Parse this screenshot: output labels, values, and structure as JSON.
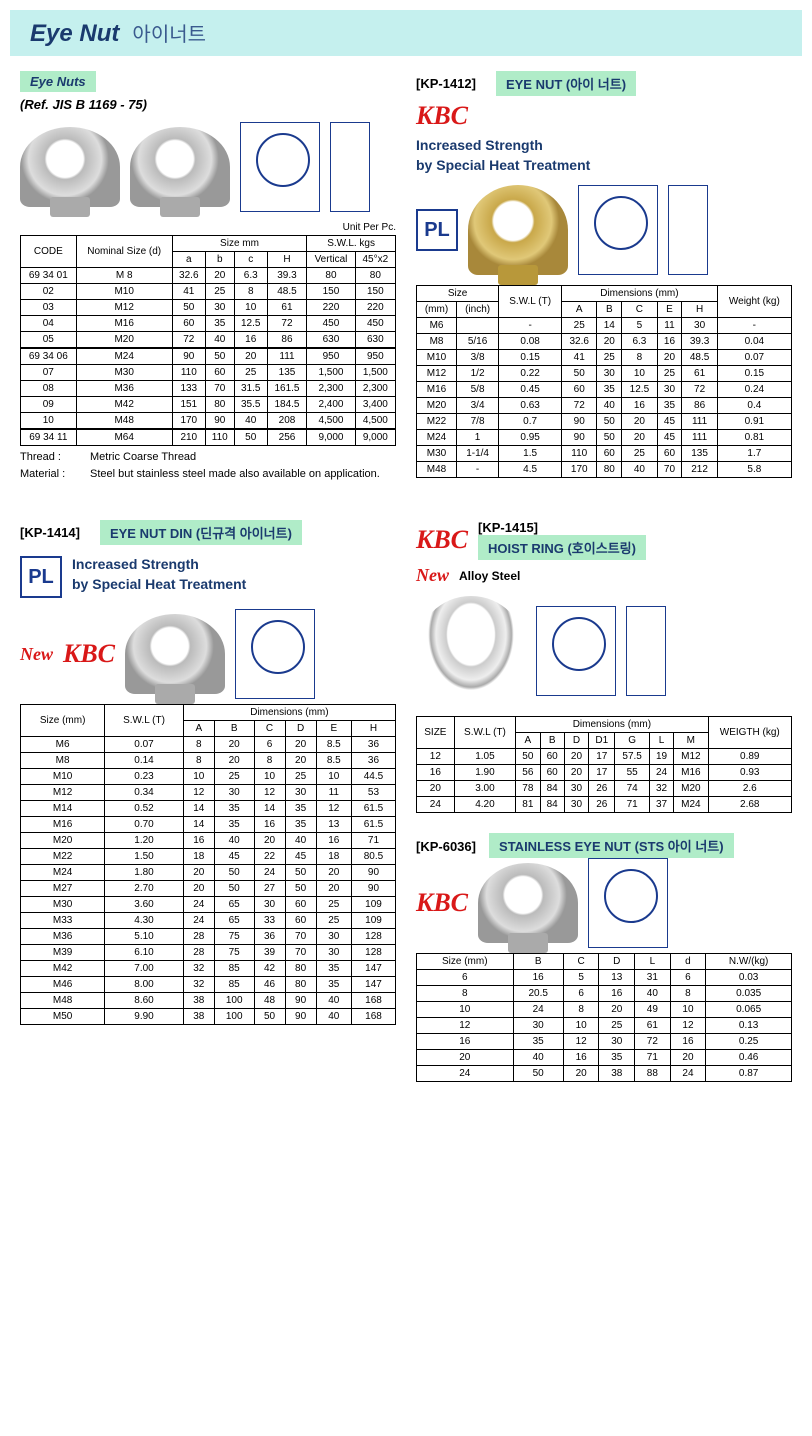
{
  "header": {
    "title_en": "Eye Nut",
    "title_kr": "아이너트"
  },
  "sec1": {
    "label": "Eye Nuts",
    "ref": "(Ref. JIS B 1169 - 75)",
    "unit": "Unit Per Pc.",
    "columns": [
      "CODE",
      "Nominal Size (d)",
      "a",
      "b",
      "c",
      "H",
      "Vertical",
      "45°x2"
    ],
    "group_size": "Size mm",
    "group_swl": "S.W.L. kgs",
    "rows1": [
      [
        "69 34 01",
        "M 8",
        "32.6",
        "20",
        "6.3",
        "39.3",
        "80",
        "80"
      ],
      [
        "02",
        "M10",
        "41",
        "25",
        "8",
        "48.5",
        "150",
        "150"
      ],
      [
        "03",
        "M12",
        "50",
        "30",
        "10",
        "61",
        "220",
        "220"
      ],
      [
        "04",
        "M16",
        "60",
        "35",
        "12.5",
        "72",
        "450",
        "450"
      ],
      [
        "05",
        "M20",
        "72",
        "40",
        "16",
        "86",
        "630",
        "630"
      ]
    ],
    "rows2": [
      [
        "69 34 06",
        "M24",
        "90",
        "50",
        "20",
        "111",
        "950",
        "950"
      ],
      [
        "07",
        "M30",
        "110",
        "60",
        "25",
        "135",
        "1,500",
        "1,500"
      ],
      [
        "08",
        "M36",
        "133",
        "70",
        "31.5",
        "161.5",
        "2,300",
        "2,300"
      ],
      [
        "09",
        "M42",
        "151",
        "80",
        "35.5",
        "184.5",
        "2,400",
        "3,400"
      ],
      [
        "10",
        "M48",
        "170",
        "90",
        "40",
        "208",
        "4,500",
        "4,500"
      ]
    ],
    "rows3": [
      [
        "69 34 11",
        "M64",
        "210",
        "110",
        "50",
        "256",
        "9,000",
        "9,000"
      ]
    ],
    "note1_label": "Thread :",
    "note1_val": "Metric Coarse Thread",
    "note2_label": "Material :",
    "note2_val": "Steel but stainless steel made also available on application."
  },
  "sec2": {
    "kp": "[KP-1412]",
    "label": "EYE NUT (아이 너트)",
    "brand": "KBC",
    "tagline": "Increased Strength\nby Special Heat Treatment",
    "pl": "PL",
    "col_size": "Size",
    "col_mm": "(mm)",
    "col_inch": "(inch)",
    "col_swl": "S.W.L (T)",
    "col_dim": "Dimensions (mm)",
    "col_weight": "Weight (kg)",
    "dim_cols": [
      "A",
      "B",
      "C",
      "E",
      "H"
    ],
    "rows": [
      [
        "M6",
        "",
        "-",
        "25",
        "14",
        "5",
        "11",
        "30",
        "-"
      ],
      [
        "M8",
        "5/16",
        "0.08",
        "32.6",
        "20",
        "6.3",
        "16",
        "39.3",
        "0.04"
      ],
      [
        "M10",
        "3/8",
        "0.15",
        "41",
        "25",
        "8",
        "20",
        "48.5",
        "0.07"
      ],
      [
        "M12",
        "1/2",
        "0.22",
        "50",
        "30",
        "10",
        "25",
        "61",
        "0.15"
      ],
      [
        "M16",
        "5/8",
        "0.45",
        "60",
        "35",
        "12.5",
        "30",
        "72",
        "0.24"
      ],
      [
        "M20",
        "3/4",
        "0.63",
        "72",
        "40",
        "16",
        "35",
        "86",
        "0.4"
      ],
      [
        "M22",
        "7/8",
        "0.7",
        "90",
        "50",
        "20",
        "45",
        "111",
        "0.91"
      ],
      [
        "M24",
        "1",
        "0.95",
        "90",
        "50",
        "20",
        "45",
        "111",
        "0.81"
      ],
      [
        "M30",
        "1-1/4",
        "1.5",
        "110",
        "60",
        "25",
        "60",
        "135",
        "1.7"
      ],
      [
        "M48",
        "-",
        "4.5",
        "170",
        "80",
        "40",
        "70",
        "212",
        "5.8"
      ]
    ]
  },
  "sec3": {
    "kp": "[KP-1414]",
    "label": "EYE NUT DIN (딘규격 아이너트)",
    "pl": "PL",
    "tagline": "Increased Strength\nby Special Heat Treatment",
    "new": "New",
    "brand": "KBC",
    "col_size": "Size (mm)",
    "col_swl": "S.W.L (T)",
    "col_dim": "Dimensions (mm)",
    "dim_cols": [
      "A",
      "B",
      "C",
      "D",
      "E",
      "H"
    ],
    "rows": [
      [
        "M6",
        "0.07",
        "8",
        "20",
        "6",
        "20",
        "8.5",
        "36"
      ],
      [
        "M8",
        "0.14",
        "8",
        "20",
        "8",
        "20",
        "8.5",
        "36"
      ],
      [
        "M10",
        "0.23",
        "10",
        "25",
        "10",
        "25",
        "10",
        "44.5"
      ],
      [
        "M12",
        "0.34",
        "12",
        "30",
        "12",
        "30",
        "11",
        "53"
      ],
      [
        "M14",
        "0.52",
        "14",
        "35",
        "14",
        "35",
        "12",
        "61.5"
      ],
      [
        "M16",
        "0.70",
        "14",
        "35",
        "16",
        "35",
        "13",
        "61.5"
      ],
      [
        "M20",
        "1.20",
        "16",
        "40",
        "20",
        "40",
        "16",
        "71"
      ],
      [
        "M22",
        "1.50",
        "18",
        "45",
        "22",
        "45",
        "18",
        "80.5"
      ],
      [
        "M24",
        "1.80",
        "20",
        "50",
        "24",
        "50",
        "20",
        "90"
      ],
      [
        "M27",
        "2.70",
        "20",
        "50",
        "27",
        "50",
        "20",
        "90"
      ],
      [
        "M30",
        "3.60",
        "24",
        "65",
        "30",
        "60",
        "25",
        "109"
      ],
      [
        "M33",
        "4.30",
        "24",
        "65",
        "33",
        "60",
        "25",
        "109"
      ],
      [
        "M36",
        "5.10",
        "28",
        "75",
        "36",
        "70",
        "30",
        "128"
      ],
      [
        "M39",
        "6.10",
        "28",
        "75",
        "39",
        "70",
        "30",
        "128"
      ],
      [
        "M42",
        "7.00",
        "32",
        "85",
        "42",
        "80",
        "35",
        "147"
      ],
      [
        "M46",
        "8.00",
        "32",
        "85",
        "46",
        "80",
        "35",
        "147"
      ],
      [
        "M48",
        "8.60",
        "38",
        "100",
        "48",
        "90",
        "40",
        "168"
      ],
      [
        "M50",
        "9.90",
        "38",
        "100",
        "50",
        "90",
        "40",
        "168"
      ]
    ]
  },
  "sec4": {
    "kp": "[KP-1415]",
    "label": "HOIST RING (호이스트링)",
    "brand": "KBC",
    "new": "New",
    "alloy": "Alloy Steel",
    "col_size": "SIZE",
    "col_swl": "S.W.L (T)",
    "col_dim": "Dimensions (mm)",
    "col_weight": "WEIGTH (kg)",
    "dim_cols": [
      "A",
      "B",
      "D",
      "D1",
      "G",
      "L",
      "M"
    ],
    "rows": [
      [
        "12",
        "1.05",
        "50",
        "60",
        "20",
        "17",
        "57.5",
        "19",
        "M12",
        "0.89"
      ],
      [
        "16",
        "1.90",
        "56",
        "60",
        "20",
        "17",
        "55",
        "24",
        "M16",
        "0.93"
      ],
      [
        "20",
        "3.00",
        "78",
        "84",
        "30",
        "26",
        "74",
        "32",
        "M20",
        "2.6"
      ],
      [
        "24",
        "4.20",
        "81",
        "84",
        "30",
        "26",
        "71",
        "37",
        "M24",
        "2.68"
      ]
    ]
  },
  "sec5": {
    "kp": "[KP-6036]",
    "label": "STAINLESS EYE NUT (STS 아이 너트)",
    "brand": "KBC",
    "cols": [
      "Size (mm)",
      "B",
      "C",
      "D",
      "L",
      "d",
      "N.W/(kg)"
    ],
    "rows": [
      [
        "6",
        "16",
        "5",
        "13",
        "31",
        "6",
        "0.03"
      ],
      [
        "8",
        "20.5",
        "6",
        "16",
        "40",
        "8",
        "0.035"
      ],
      [
        "10",
        "24",
        "8",
        "20",
        "49",
        "10",
        "0.065"
      ],
      [
        "12",
        "30",
        "10",
        "25",
        "61",
        "12",
        "0.13"
      ],
      [
        "16",
        "35",
        "12",
        "30",
        "72",
        "16",
        "0.25"
      ],
      [
        "20",
        "40",
        "16",
        "35",
        "71",
        "20",
        "0.46"
      ],
      [
        "24",
        "50",
        "20",
        "38",
        "88",
        "24",
        "0.87"
      ]
    ]
  }
}
